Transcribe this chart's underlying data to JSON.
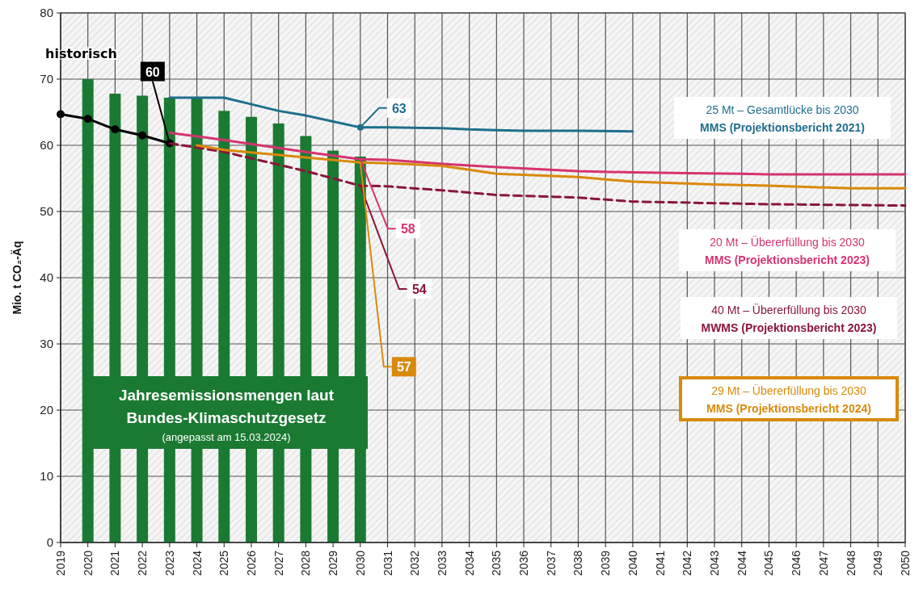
{
  "chart_data": {
    "type": "line",
    "ylabel": "Mio. t CO₂-Äq",
    "xlim": [
      2019,
      2050
    ],
    "xticks": [
      2019,
      2020,
      2021,
      2022,
      2023,
      2024,
      2025,
      2026,
      2027,
      2028,
      2029,
      2030,
      2031,
      2032,
      2033,
      2034,
      2035,
      2036,
      2037,
      2038,
      2039,
      2040,
      2041,
      2042,
      2043,
      2044,
      2045,
      2046,
      2047,
      2048,
      2049,
      2050
    ],
    "ylim": [
      0,
      80
    ],
    "yticks": [
      0,
      10,
      20,
      30,
      40,
      50,
      60,
      70,
      80
    ],
    "grid": true,
    "legend": "right",
    "series": [
      {
        "type": "bar",
        "name": "Jahresemissionsmengen laut\nBundes-Klimaschutzgesetz\n(angepasst am 15.03.2024)",
        "color": "#1a7a32",
        "x": [
          2020,
          2021,
          2022,
          2023,
          2024,
          2025,
          2026,
          2027,
          2028,
          2029,
          2030
        ],
        "values": [
          70,
          67.8,
          67.5,
          67.2,
          67.2,
          65.2,
          64.3,
          63.3,
          61.4,
          59.2,
          58.3
        ]
      },
      {
        "name": "historisch",
        "color": "#000000",
        "marker": "circle",
        "x": [
          2019,
          2020,
          2021,
          2022,
          2023
        ],
        "values": [
          64.7,
          64.0,
          62.4,
          61.5,
          60.3
        ],
        "value_labels": [
          null,
          null,
          null,
          null,
          "60"
        ]
      },
      {
        "name": "25 Mt – Gesamtlücke bis 2030\nMMS (Projektionsbericht 2021)",
        "color": "#1f6e8c",
        "x": [
          2023,
          2024,
          2025,
          2026,
          2027,
          2028,
          2029,
          2030,
          2031,
          2033,
          2034,
          2035,
          2036,
          2038,
          2040
        ],
        "values": [
          67.2,
          67.2,
          67.2,
          66.2,
          65.2,
          64.5,
          63.6,
          62.7,
          62.7,
          62.6,
          62.4,
          62.3,
          62.2,
          62.2,
          62.1
        ],
        "value_labels": [
          null,
          null,
          null,
          null,
          null,
          null,
          null,
          "63",
          null,
          null,
          null,
          null,
          null,
          null,
          null
        ]
      },
      {
        "name": "20 Mt – Übererfüllung bis 2030\nMMS (Projektionsbericht 2023)",
        "color": "#d6336f",
        "x": [
          2023,
          2025,
          2028,
          2030,
          2031,
          2033,
          2035,
          2038,
          2040,
          2042,
          2044,
          2045,
          2050
        ],
        "values": [
          61.9,
          60.8,
          59.0,
          57.9,
          57.8,
          57.2,
          56.7,
          56.1,
          55.9,
          55.8,
          55.7,
          55.6,
          55.6
        ],
        "value_labels": [
          null,
          null,
          null,
          "58",
          null,
          null,
          null,
          null,
          null,
          null,
          null,
          null,
          null
        ]
      },
      {
        "name": "40 Mt – Übererfüllung bis 2030\nMWMS (Projektionsbericht 2023)",
        "color": "#8b1538",
        "line_style": "dashed",
        "x": [
          2023,
          2025,
          2028,
          2030,
          2031,
          2033,
          2035,
          2038,
          2040,
          2045,
          2050
        ],
        "values": [
          60.3,
          59.0,
          56.1,
          53.9,
          53.8,
          53.2,
          52.5,
          52.1,
          51.5,
          51.1,
          50.9
        ],
        "value_labels": [
          null,
          null,
          null,
          "54",
          null,
          null,
          null,
          null,
          null,
          null,
          null
        ]
      },
      {
        "name": "29 Mt – Übererfüllung bis 2030\nMMS (Projektionsbericht 2024)",
        "color": "#d98a0b",
        "x": [
          2024,
          2025,
          2030,
          2031,
          2033,
          2034,
          2035,
          2038,
          2040,
          2043,
          2045,
          2048,
          2050
        ],
        "values": [
          60.0,
          59.3,
          57.4,
          57.3,
          56.9,
          56.3,
          55.7,
          55.2,
          54.5,
          54.1,
          53.9,
          53.5,
          53.5
        ],
        "value_labels": [
          null,
          null,
          "57",
          null,
          null,
          null,
          null,
          null,
          null,
          null,
          null,
          null,
          null
        ]
      }
    ]
  }
}
